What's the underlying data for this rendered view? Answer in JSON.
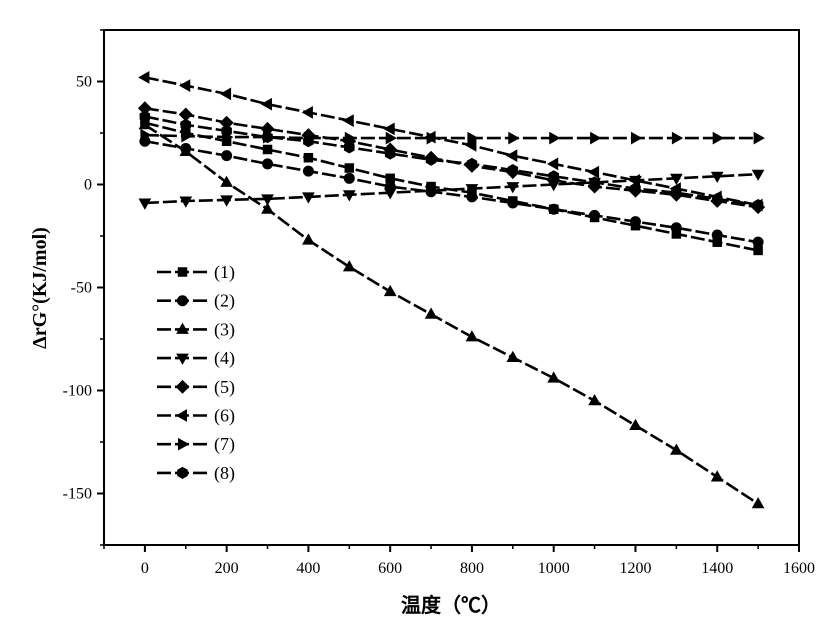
{
  "chart_data": {
    "type": "line",
    "title": "",
    "xlabel": "温度（℃）",
    "ylabel": "ΔrG°(KJ/mol)",
    "xlim": [
      -100,
      1600
    ],
    "ylim": [
      -175,
      75
    ],
    "xticks": [
      0,
      200,
      400,
      600,
      800,
      1000,
      1200,
      1400,
      1600
    ],
    "yticks": [
      -150,
      -100,
      -50,
      0,
      50
    ],
    "x": [
      0,
      100,
      200,
      300,
      400,
      500,
      600,
      700,
      800,
      900,
      1000,
      1100,
      1200,
      1300,
      1400,
      1500
    ],
    "legend_position": "left-middle",
    "series": [
      {
        "name": "(1)",
        "marker": "square",
        "values": [
          30,
          25,
          21,
          17,
          13,
          8,
          3,
          -1,
          -4,
          -8,
          -12,
          -16,
          -20,
          -24,
          -28,
          -32
        ]
      },
      {
        "name": "(2)",
        "marker": "circle",
        "values": [
          21,
          17.5,
          14,
          10,
          6.5,
          3,
          -1,
          -3.5,
          -6,
          -9,
          -12,
          -15,
          -18,
          -21,
          -24.5,
          -28
        ]
      },
      {
        "name": "(3)",
        "marker": "triangle-up",
        "values": [
          29,
          16,
          1,
          -12,
          -27,
          -40,
          -52,
          -63,
          -74,
          -84,
          -94,
          -105,
          -117,
          -129,
          -142,
          -155
        ]
      },
      {
        "name": "(4)",
        "marker": "triangle-down",
        "values": [
          -9,
          -8,
          -7.5,
          -7,
          -6,
          -5,
          -4,
          -3,
          -2,
          -1,
          0,
          1,
          2,
          3,
          4,
          5
        ]
      },
      {
        "name": "(5)",
        "marker": "diamond",
        "values": [
          37,
          34,
          30,
          27,
          24,
          21,
          17,
          13,
          9,
          6,
          2,
          -1,
          -3,
          -5,
          -8,
          -11
        ]
      },
      {
        "name": "(6)",
        "marker": "triangle-left",
        "values": [
          52,
          48,
          44,
          39,
          35,
          31,
          27,
          23,
          19,
          14,
          10,
          6,
          2,
          -2,
          -6,
          -10
        ]
      },
      {
        "name": "(7)",
        "marker": "triangle-right",
        "values": [
          24,
          23.5,
          23,
          23,
          22.5,
          22.5,
          22.5,
          22.5,
          22.5,
          22.5,
          22.5,
          22.5,
          22.5,
          22.5,
          22.5,
          22.5
        ]
      },
      {
        "name": "(8)",
        "marker": "hexagon",
        "values": [
          33,
          29,
          26,
          23,
          21,
          18,
          15,
          12,
          10,
          7,
          4,
          1,
          -2,
          -4,
          -7,
          -10
        ]
      }
    ]
  }
}
